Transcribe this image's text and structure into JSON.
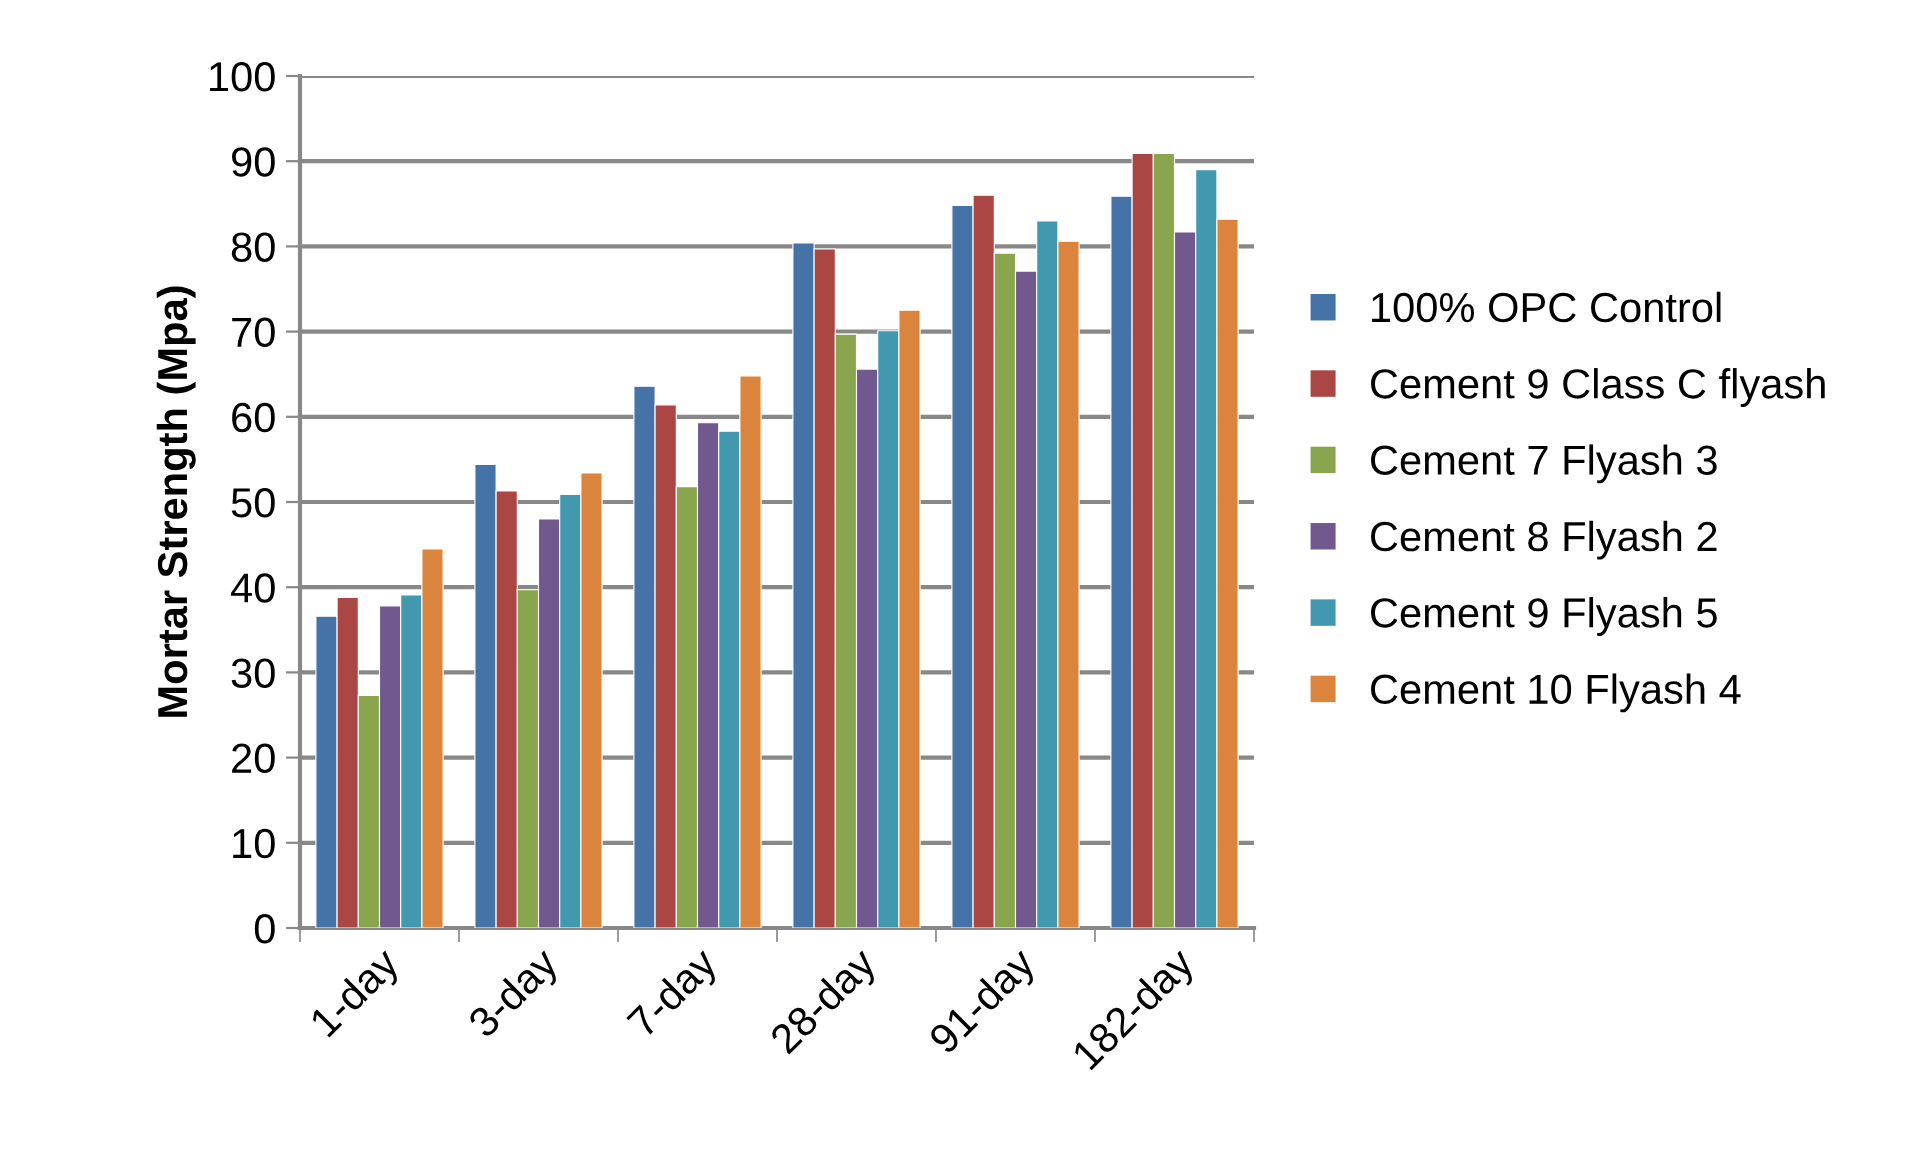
{
  "chart_data": {
    "type": "bar",
    "ylabel": "Mortar Strength (Mpa)",
    "categories": [
      "1-day",
      "3-day",
      "7-day",
      "28-day",
      "91-day",
      "182-day"
    ],
    "series": [
      {
        "name": "100% OPC Control",
        "color": "#4572a7",
        "values": [
          36.6,
          54.4,
          63.6,
          80.4,
          84.8,
          85.9
        ]
      },
      {
        "name": "Cement 9 Class C flyash",
        "color": "#aa4643",
        "values": [
          38.8,
          51.3,
          61.4,
          79.7,
          86.0,
          90.9
        ]
      },
      {
        "name": "Cement 7 Flyash 3",
        "color": "#89a54e",
        "values": [
          27.3,
          39.7,
          51.8,
          69.7,
          79.2,
          90.9
        ]
      },
      {
        "name": "Cement 8 Flyash 2",
        "color": "#71588f",
        "values": [
          37.8,
          48.0,
          59.3,
          65.6,
          77.1,
          81.7
        ]
      },
      {
        "name": "Cement 9 Flyash 5",
        "color": "#4198af",
        "values": [
          39.1,
          50.9,
          58.3,
          70.1,
          83.0,
          89.0
        ]
      },
      {
        "name": "Cement 10 Flyash 4",
        "color": "#db843d",
        "values": [
          44.5,
          53.4,
          64.8,
          72.5,
          80.6,
          83.2
        ]
      }
    ],
    "ylim": [
      0,
      100
    ],
    "yticks": [
      0,
      10,
      20,
      30,
      40,
      50,
      60,
      70,
      80,
      90,
      100
    ],
    "grid": "y",
    "legend": "right"
  }
}
